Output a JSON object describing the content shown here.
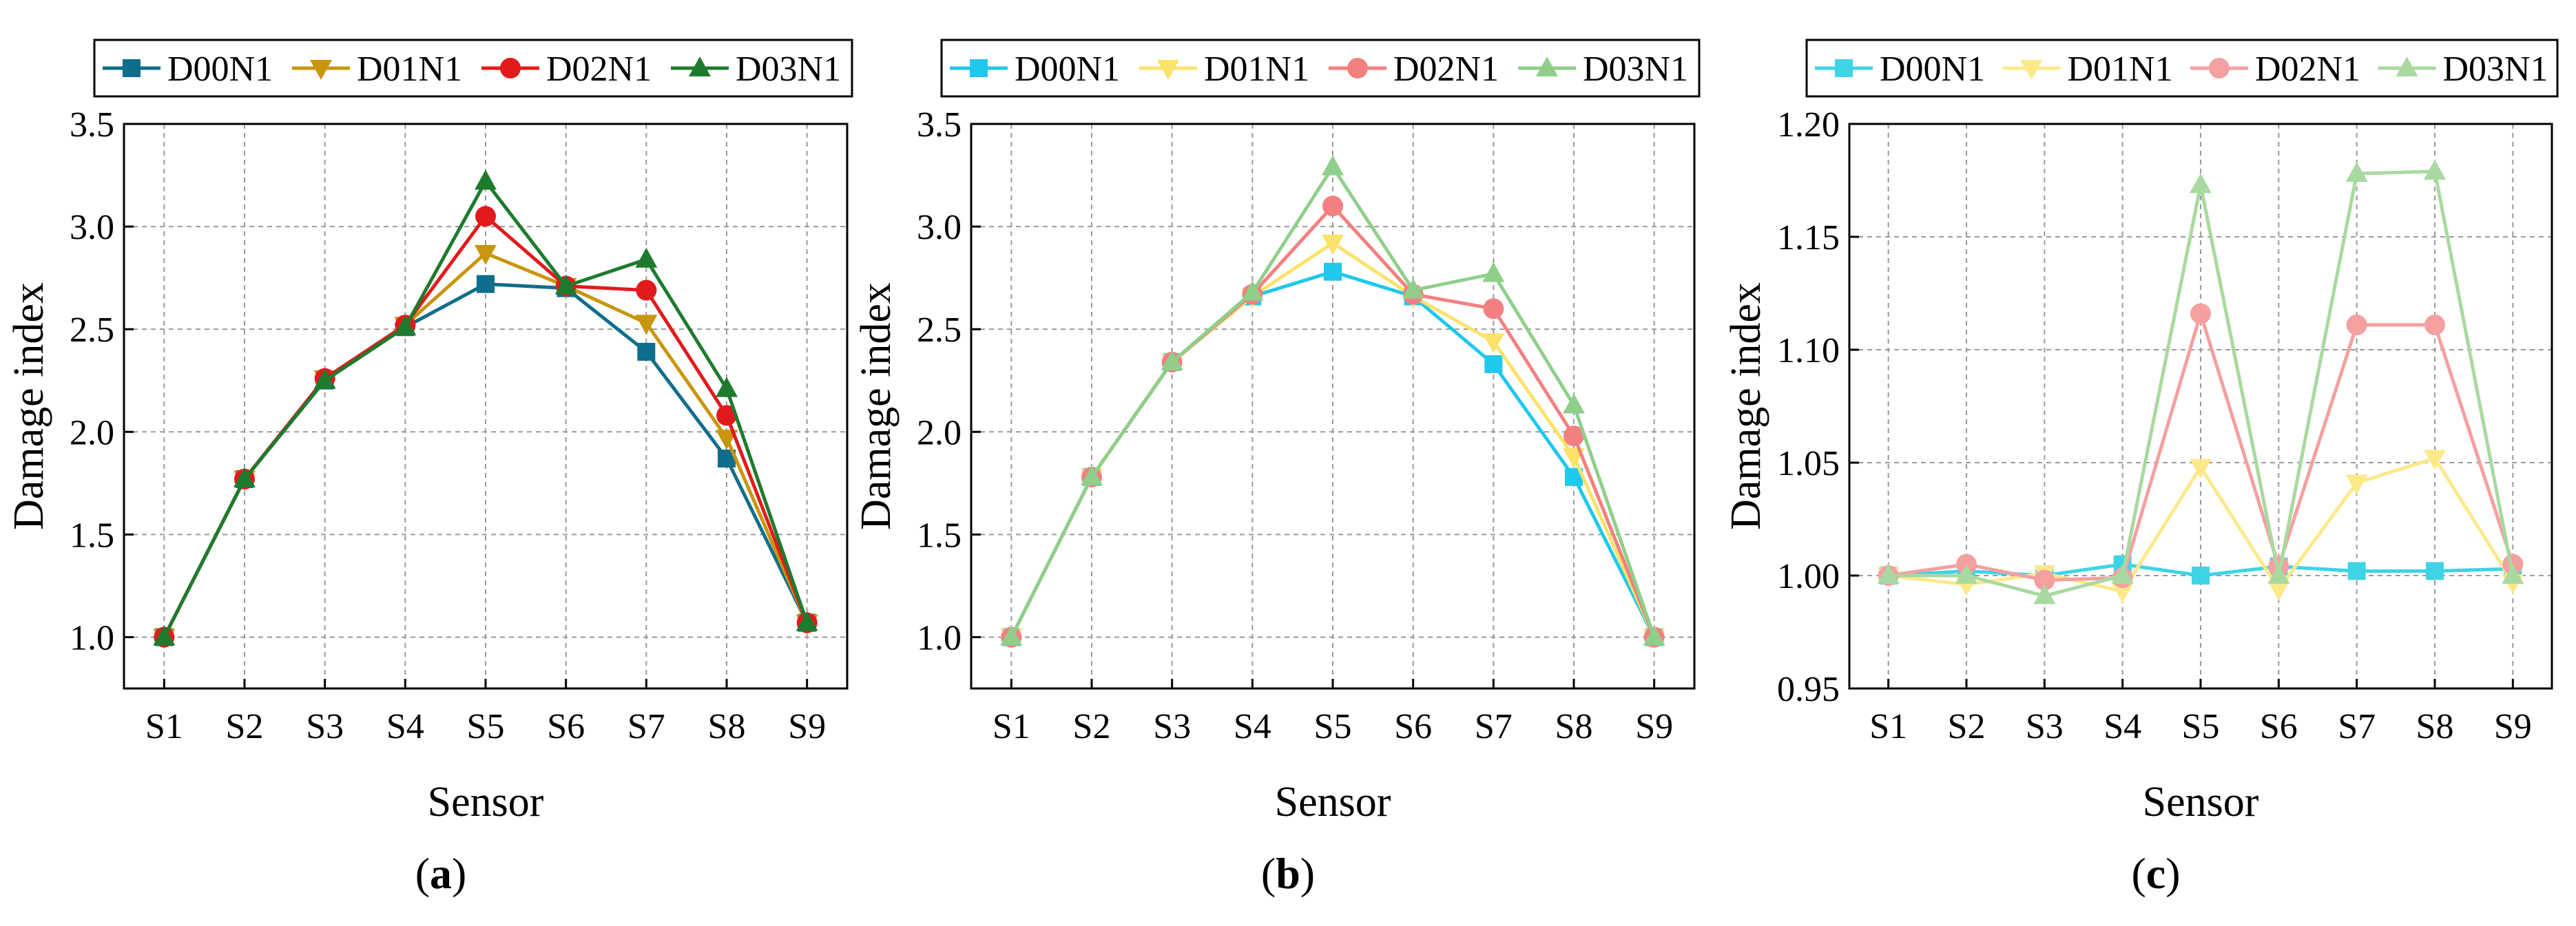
{
  "chart_data": [
    {
      "id": "a",
      "type": "line",
      "panel_label": "a",
      "xlabel": "Sensor",
      "ylabel": "Damage index",
      "categories": [
        "S1",
        "S2",
        "S3",
        "S4",
        "S5",
        "S6",
        "S7",
        "S8",
        "S9"
      ],
      "ylim": [
        0.75,
        3.5
      ],
      "yticks": [
        1.0,
        1.5,
        2.0,
        2.5,
        3.0,
        3.5
      ],
      "ytick_labels": [
        "1.0",
        "1.5",
        "2.0",
        "2.5",
        "3.0",
        "3.5"
      ],
      "grid": true,
      "legend_position": "top",
      "series": [
        {
          "name": "D00N1",
          "color": "#0e6e8c",
          "marker": "square",
          "values": [
            1.0,
            1.77,
            2.25,
            2.51,
            2.72,
            2.7,
            2.39,
            1.87,
            1.07
          ]
        },
        {
          "name": "D01N1",
          "color": "#c8960c",
          "marker": "triangle-down",
          "values": [
            1.0,
            1.77,
            2.26,
            2.52,
            2.87,
            2.71,
            2.53,
            1.97,
            1.07
          ]
        },
        {
          "name": "D02N1",
          "color": "#e31a1c",
          "marker": "circle",
          "values": [
            1.0,
            1.77,
            2.26,
            2.52,
            3.05,
            2.71,
            2.69,
            2.08,
            1.07
          ]
        },
        {
          "name": "D03N1",
          "color": "#1e7b2d",
          "marker": "triangle-up",
          "values": [
            1.0,
            1.77,
            2.25,
            2.51,
            3.22,
            2.71,
            2.84,
            2.21,
            1.07
          ]
        }
      ]
    },
    {
      "id": "b",
      "type": "line",
      "panel_label": "b",
      "xlabel": "Sensor",
      "ylabel": "Damage index",
      "categories": [
        "S1",
        "S2",
        "S3",
        "S4",
        "S5",
        "S6",
        "S7",
        "S8",
        "S9"
      ],
      "ylim": [
        0.75,
        3.5
      ],
      "yticks": [
        1.0,
        1.5,
        2.0,
        2.5,
        3.0,
        3.5
      ],
      "ytick_labels": [
        "1.0",
        "1.5",
        "2.0",
        "2.5",
        "3.0",
        "3.5"
      ],
      "grid": true,
      "legend_position": "top",
      "series": [
        {
          "name": "D00N1",
          "color": "#1fc8ec",
          "marker": "square",
          "values": [
            1.0,
            1.78,
            2.34,
            2.66,
            2.78,
            2.66,
            2.33,
            1.78,
            1.0
          ]
        },
        {
          "name": "D01N1",
          "color": "#fbe26a",
          "marker": "triangle-down",
          "values": [
            1.0,
            1.78,
            2.34,
            2.66,
            2.92,
            2.66,
            2.44,
            1.88,
            1.0
          ]
        },
        {
          "name": "D02N1",
          "color": "#f28080",
          "marker": "circle",
          "values": [
            1.0,
            1.78,
            2.34,
            2.67,
            3.1,
            2.67,
            2.6,
            1.98,
            1.0
          ]
        },
        {
          "name": "D03N1",
          "color": "#8fcf8a",
          "marker": "triangle-up",
          "values": [
            1.0,
            1.78,
            2.34,
            2.68,
            3.29,
            2.69,
            2.77,
            2.13,
            1.0
          ]
        }
      ]
    },
    {
      "id": "c",
      "type": "line",
      "panel_label": "c",
      "xlabel": "Sensor",
      "ylabel": "Damage index",
      "categories": [
        "S1",
        "S2",
        "S3",
        "S4",
        "S5",
        "S6",
        "S7",
        "S8",
        "S9"
      ],
      "ylim": [
        0.95,
        1.2
      ],
      "yticks": [
        0.95,
        1.0,
        1.05,
        1.1,
        1.15,
        1.2
      ],
      "ytick_labels": [
        "0.95",
        "1.00",
        "1.05",
        "1.10",
        "1.15",
        "1.20"
      ],
      "grid": true,
      "legend_position": "top",
      "series": [
        {
          "name": "D00N1",
          "color": "#3fd3e6",
          "marker": "square",
          "values": [
            1.0,
            1.002,
            1.0,
            1.005,
            1.0,
            1.004,
            1.002,
            1.002,
            1.003
          ]
        },
        {
          "name": "D01N1",
          "color": "#fde98a",
          "marker": "triangle-down",
          "values": [
            1.0,
            0.996,
            1.001,
            0.993,
            1.048,
            0.994,
            1.041,
            1.052,
            0.997
          ]
        },
        {
          "name": "D02N1",
          "color": "#f4a0a0",
          "marker": "circle",
          "values": [
            1.0,
            1.005,
            0.998,
            0.999,
            1.116,
            1.004,
            1.111,
            1.111,
            1.005
          ]
        },
        {
          "name": "D03N1",
          "color": "#a9d9a0",
          "marker": "triangle-up",
          "values": [
            1.0,
            1.0,
            0.991,
            1.0,
            1.173,
            1.0,
            1.178,
            1.179,
            1.0
          ]
        }
      ]
    }
  ]
}
